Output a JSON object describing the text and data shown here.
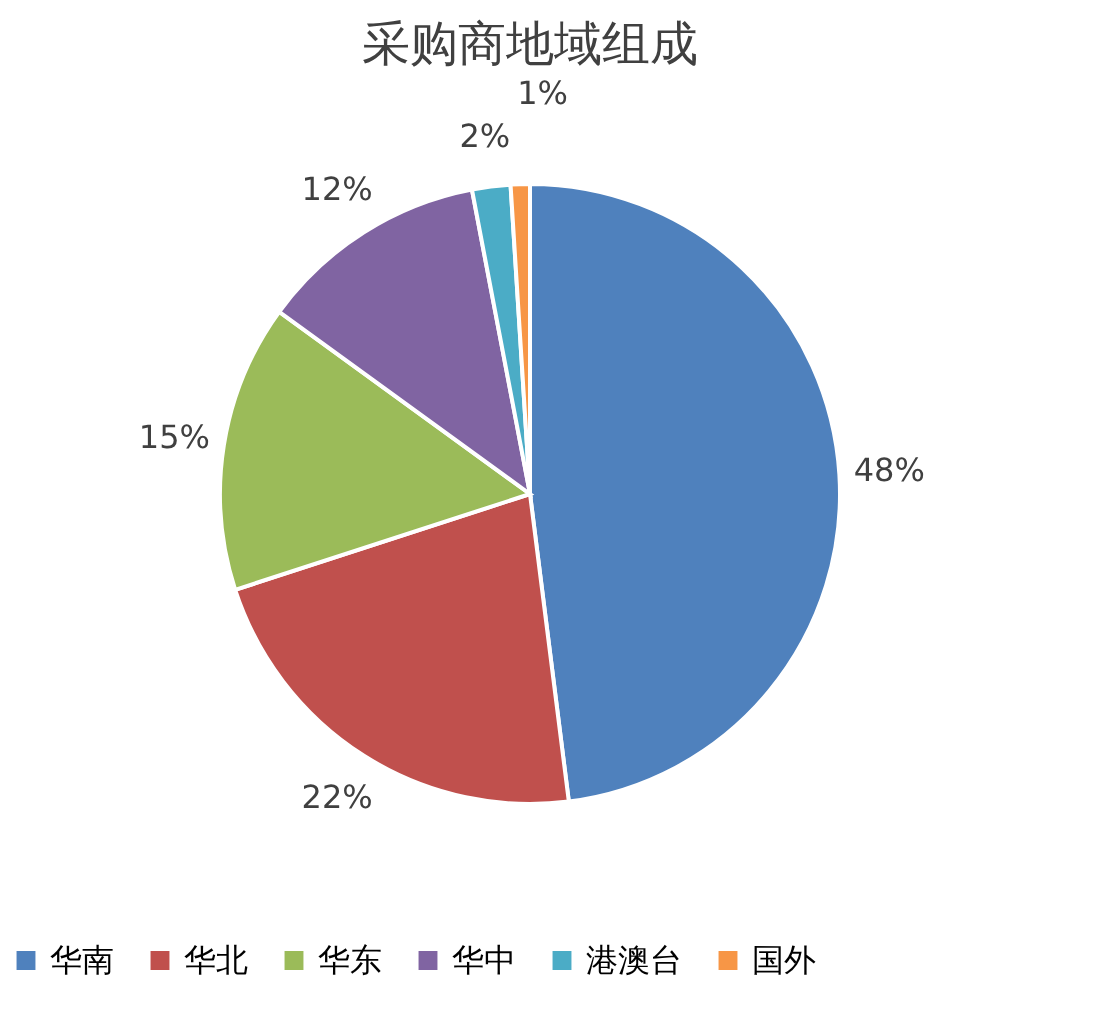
{
  "chart_data": {
    "type": "pie",
    "title": "采购商地域组成",
    "categories": [
      "华南",
      "华北",
      "华东",
      "华中",
      "港澳台",
      "国外"
    ],
    "values": [
      48,
      22,
      15,
      12,
      2,
      1
    ],
    "colors": [
      "#4f81bd",
      "#c0504d",
      "#9bbb59",
      "#8064a2",
      "#4bacc6",
      "#f79646"
    ],
    "value_labels": [
      "48%",
      "22%",
      "15%",
      "12%",
      "2%",
      "1%"
    ],
    "legend": "bottom"
  }
}
